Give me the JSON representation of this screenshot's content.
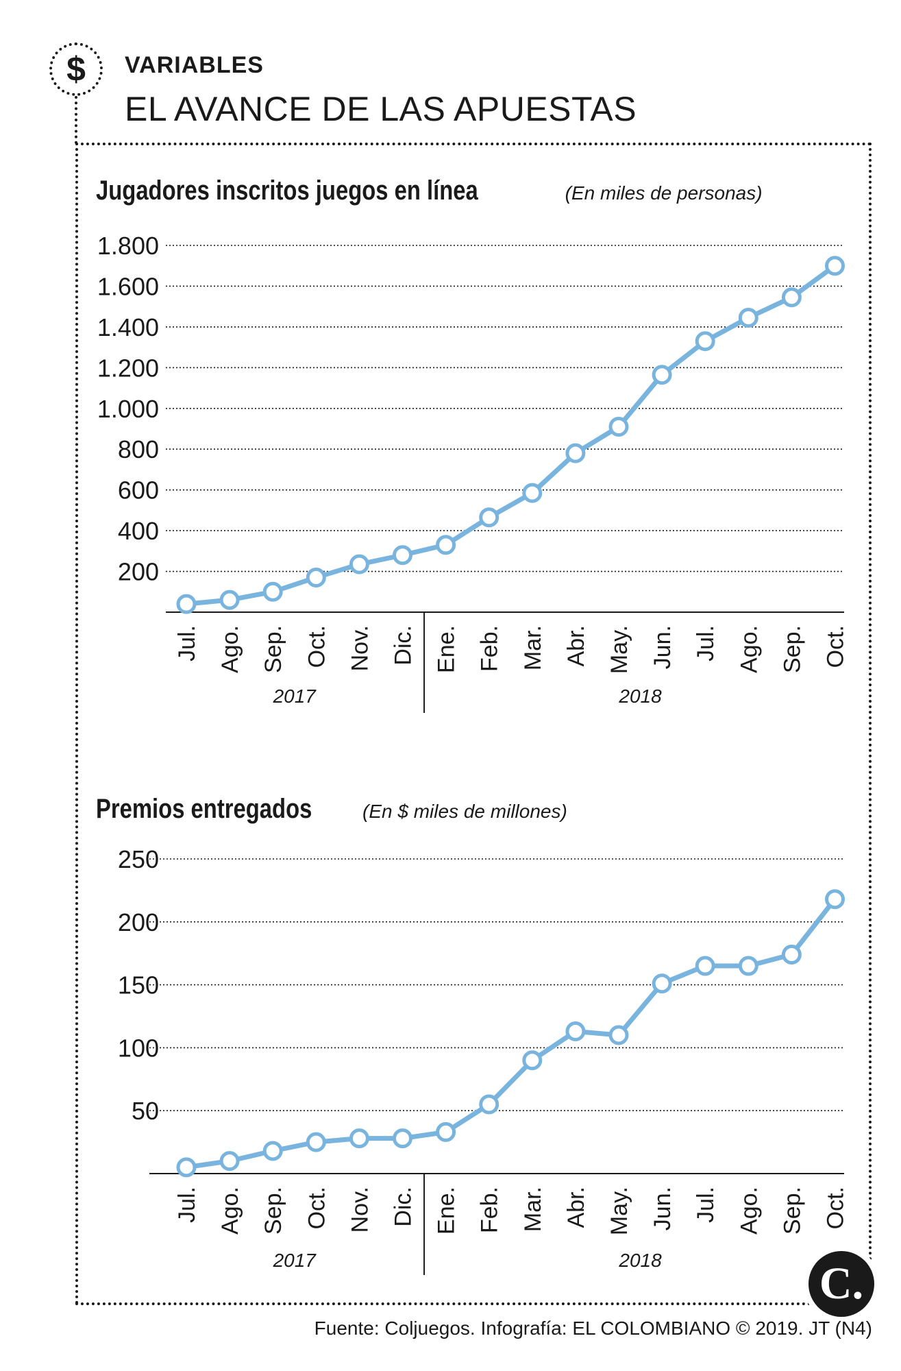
{
  "header": {
    "icon": "dollar-icon",
    "icon_glyph": "$",
    "kicker": "VARIABLES",
    "headline": "EL AVANCE DE LAS APUESTAS"
  },
  "source": "Fuente: Coljuegos. Infografía: EL COLOMBIANO © 2019. JT (N4)",
  "logo": {
    "icon": "el-colombiano-logo-icon",
    "glyph": "C."
  },
  "line_color": "#79b4de",
  "chart_data": [
    {
      "type": "line",
      "title": "Jugadores inscritos juegos en línea",
      "subtitle": "(En miles de personas)",
      "categories": [
        "Jul.",
        "Ago.",
        "Sep.",
        "Oct.",
        "Nov.",
        "Dic.",
        "Ene.",
        "Feb.",
        "Mar.",
        "Abr.",
        "May.",
        "Jun.",
        "Jul.",
        "Ago.",
        "Sep.",
        "Oct."
      ],
      "year_groups": [
        {
          "label": "2017",
          "count": 6
        },
        {
          "label": "2018",
          "count": 10
        }
      ],
      "series": [
        {
          "values": [
            40,
            60,
            100,
            170,
            235,
            280,
            330,
            465,
            585,
            780,
            910,
            1165,
            1330,
            1445,
            1545,
            1700
          ]
        }
      ],
      "yticks": [
        200,
        400,
        600,
        800,
        1000,
        1200,
        1400,
        1600,
        1800
      ],
      "ytick_labels": [
        "200",
        "400",
        "600",
        "800",
        "1.000",
        "1.200",
        "1.400",
        "1.600",
        "1.800"
      ],
      "ylim": [
        0,
        1800
      ],
      "grid": true
    },
    {
      "type": "line",
      "title": "Premios entregados",
      "subtitle": "(En $ miles de millones)",
      "categories": [
        "Jul.",
        "Ago.",
        "Sep.",
        "Oct.",
        "Nov.",
        "Dic.",
        "Ene.",
        "Feb.",
        "Mar.",
        "Abr.",
        "May.",
        "Jun.",
        "Jul.",
        "Ago.",
        "Sep.",
        "Oct."
      ],
      "year_groups": [
        {
          "label": "2017",
          "count": 6
        },
        {
          "label": "2018",
          "count": 10
        }
      ],
      "series": [
        {
          "values": [
            5,
            10,
            18,
            25,
            28,
            28,
            33,
            55,
            90,
            113,
            110,
            151,
            165,
            165,
            174,
            218
          ]
        }
      ],
      "yticks": [
        50,
        100,
        150,
        200,
        250
      ],
      "ytick_labels": [
        "50",
        "100",
        "150",
        "200",
        "250"
      ],
      "ylim": [
        0,
        250
      ],
      "grid": true
    }
  ]
}
